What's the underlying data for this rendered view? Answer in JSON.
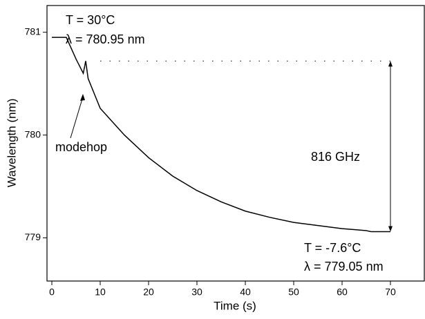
{
  "chart_data": {
    "type": "line",
    "xlabel": "Time (s)",
    "ylabel": "Wavelength (nm)",
    "x": [
      0,
      3,
      5,
      6.5,
      7,
      7.5,
      10,
      15,
      20,
      25,
      30,
      35,
      40,
      45,
      50,
      55,
      60,
      65,
      66,
      70
    ],
    "series": [
      {
        "name": "wavelength",
        "color": "#000000",
        "values": [
          780.95,
          780.95,
          780.74,
          780.6,
          780.72,
          780.55,
          780.26,
          780.0,
          779.78,
          779.6,
          779.46,
          779.35,
          779.26,
          779.2,
          779.15,
          779.12,
          779.09,
          779.07,
          779.06,
          779.06
        ]
      }
    ],
    "xlim": [
      -1,
      77
    ],
    "xticks": [
      0,
      10,
      20,
      30,
      40,
      50,
      60,
      70
    ],
    "ylim": [
      778.58,
      781.26
    ],
    "yticks": [
      779,
      780,
      781
    ],
    "annotations": {
      "start_temp": "T = 30°C",
      "start_wl": "λ = 780.95 nm",
      "end_temp": "T = -7.6°C",
      "end_wl": "λ = 779.05 nm",
      "modehop": "modehop",
      "span": "816 GHz"
    }
  }
}
